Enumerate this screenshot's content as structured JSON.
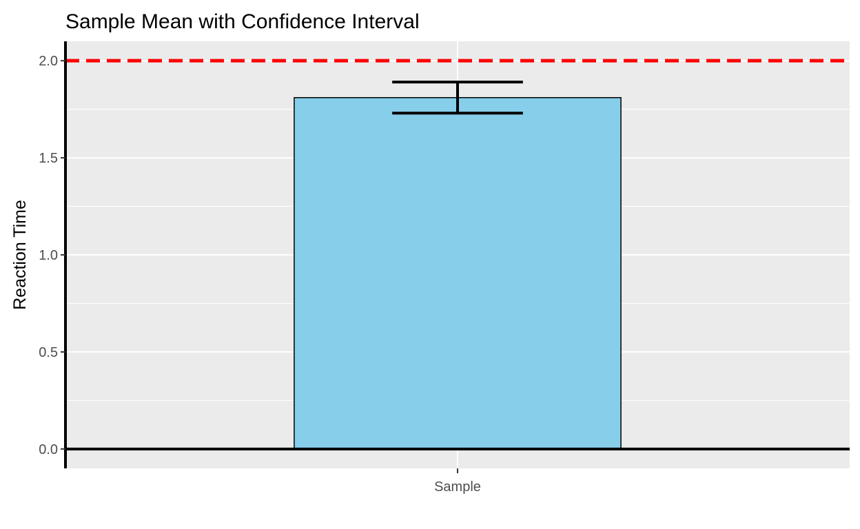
{
  "chart_data": {
    "type": "bar",
    "title": "Sample Mean with Confidence Interval",
    "xlabel": "",
    "ylabel": "Reaction Time",
    "categories": [
      "Sample"
    ],
    "values": [
      1.81
    ],
    "error_bars": [
      {
        "lower": 1.73,
        "upper": 1.89
      }
    ],
    "reference_lines": [
      {
        "orientation": "horizontal",
        "value": 2.0,
        "style": "dashed",
        "color": "#ff0000"
      },
      {
        "orientation": "horizontal",
        "value": 0.0,
        "style": "solid",
        "color": "#000000"
      },
      {
        "orientation": "vertical",
        "value": 0.4,
        "style": "solid",
        "color": "#000000"
      }
    ],
    "xlim": [
      0.4,
      1.6
    ],
    "ylim": [
      -0.1,
      2.1
    ],
    "yticks": [
      0.0,
      0.5,
      1.0,
      1.5,
      2.0
    ],
    "ytick_labels": [
      "0.0",
      "0.5",
      "1.0",
      "1.5",
      "2.0"
    ],
    "bar_fill": "#87ceeb",
    "bar_outline": "#000000",
    "panel_background": "#ebebeb",
    "grid": true
  }
}
